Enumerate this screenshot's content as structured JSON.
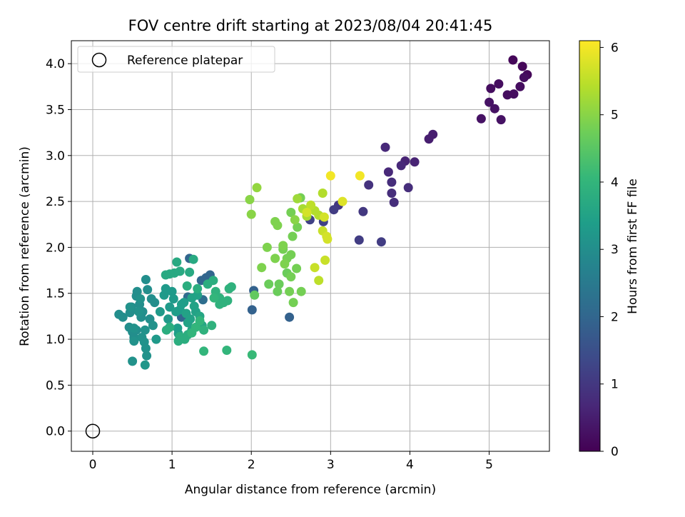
{
  "chart_data": {
    "type": "scatter",
    "title": "FOV centre drift starting at 2023/08/04 20:41:45",
    "xlabel": "Angular distance from reference (arcmin)",
    "ylabel": "Rotation from reference (arcmin)",
    "xlim": [
      -0.27,
      5.76
    ],
    "ylim": [
      -0.22,
      4.25
    ],
    "x_ticks": [
      0,
      1,
      2,
      3,
      4,
      5
    ],
    "y_ticks": [
      0.0,
      0.5,
      1.0,
      1.5,
      2.0,
      2.5,
      3.0,
      3.5,
      4.0
    ],
    "x_tick_labels": [
      "0",
      "1",
      "2",
      "3",
      "4",
      "5"
    ],
    "y_tick_labels": [
      "0.0",
      "0.5",
      "1.0",
      "1.5",
      "2.0",
      "2.5",
      "3.0",
      "3.5",
      "4.0"
    ],
    "grid": true,
    "legend": {
      "placement": "top-left",
      "entries": [
        "Reference platepar"
      ]
    },
    "colorbar": {
      "label": "Hours from first FF file",
      "colormap": "viridis",
      "range": [
        0,
        6.1
      ],
      "ticks": [
        0,
        1,
        2,
        3,
        4,
        5,
        6
      ],
      "tick_labels": [
        "0",
        "1",
        "2",
        "3",
        "4",
        "5",
        "6"
      ]
    },
    "reference": {
      "x": 0,
      "y": 0
    },
    "points": [
      [
        5.3,
        4.04,
        0.1
      ],
      [
        5.42,
        3.97,
        0.1
      ],
      [
        5.48,
        3.88,
        0.1
      ],
      [
        5.44,
        3.85,
        0.2
      ],
      [
        5.39,
        3.75,
        0.2
      ],
      [
        5.31,
        3.67,
        0.2
      ],
      [
        5.23,
        3.66,
        0.2
      ],
      [
        5.12,
        3.78,
        0.2
      ],
      [
        5.02,
        3.73,
        0.2
      ],
      [
        5.0,
        3.58,
        0.3
      ],
      [
        5.07,
        3.51,
        0.3
      ],
      [
        4.9,
        3.4,
        0.3
      ],
      [
        5.15,
        3.39,
        0.3
      ],
      [
        4.29,
        3.23,
        0.5
      ],
      [
        4.24,
        3.18,
        0.5
      ],
      [
        4.06,
        2.93,
        0.6
      ],
      [
        3.94,
        2.94,
        0.6
      ],
      [
        3.89,
        2.89,
        0.7
      ],
      [
        3.73,
        2.82,
        0.7
      ],
      [
        3.69,
        3.09,
        0.7
      ],
      [
        3.77,
        2.71,
        0.8
      ],
      [
        3.77,
        2.59,
        0.8
      ],
      [
        3.8,
        2.49,
        0.8
      ],
      [
        3.98,
        2.65,
        0.8
      ],
      [
        3.48,
        2.68,
        0.9
      ],
      [
        3.41,
        2.39,
        1.0
      ],
      [
        3.1,
        2.46,
        1.0
      ],
      [
        3.04,
        2.41,
        1.1
      ],
      [
        3.36,
        2.08,
        1.1
      ],
      [
        3.64,
        2.06,
        1.1
      ],
      [
        2.91,
        2.28,
        1.2
      ],
      [
        2.74,
        2.3,
        1.2
      ],
      [
        2.48,
        1.24,
        1.9
      ],
      [
        2.01,
        1.32,
        1.9
      ],
      [
        2.03,
        1.53,
        1.9
      ],
      [
        1.22,
        1.88,
        2.0
      ],
      [
        1.43,
        1.67,
        2.0
      ],
      [
        1.48,
        1.7,
        2.0
      ],
      [
        1.37,
        1.64,
        2.0
      ],
      [
        1.12,
        1.24,
        2.0
      ],
      [
        1.2,
        1.46,
        2.1
      ],
      [
        1.39,
        1.43,
        2.2
      ],
      [
        0.33,
        1.27,
        3.0
      ],
      [
        0.38,
        1.24,
        3.0
      ],
      [
        0.46,
        1.13,
        3.0
      ],
      [
        0.47,
        1.29,
        3.0
      ],
      [
        0.49,
        1.35,
        3.0
      ],
      [
        0.5,
        1.08,
        3.0
      ],
      [
        0.52,
        1.02,
        3.0
      ],
      [
        0.55,
        1.1,
        3.0
      ],
      [
        0.55,
        1.47,
        3.0
      ],
      [
        0.56,
        1.52,
        3.0
      ],
      [
        0.59,
        1.38,
        3.0
      ],
      [
        0.61,
        1.24,
        3.0
      ],
      [
        0.63,
        1.3,
        3.0
      ],
      [
        0.67,
        1.65,
        3.0
      ],
      [
        0.69,
        1.54,
        3.0
      ],
      [
        0.72,
        1.22,
        3.0
      ],
      [
        0.74,
        1.44,
        3.0
      ],
      [
        0.78,
        1.4,
        3.0
      ],
      [
        0.52,
        1.12,
        3.1
      ],
      [
        0.58,
        1.3,
        3.1
      ],
      [
        0.6,
        1.44,
        3.1
      ],
      [
        0.62,
        1.02,
        3.1
      ],
      [
        0.65,
        0.97,
        3.1
      ],
      [
        0.66,
        1.1,
        3.1
      ],
      [
        0.68,
        0.82,
        3.1
      ],
      [
        0.67,
        0.9,
        3.1
      ],
      [
        0.76,
        1.15,
        3.1
      ],
      [
        0.47,
        1.35,
        3.1
      ],
      [
        0.52,
        0.98,
        3.1
      ],
      [
        0.5,
        0.76,
        3.1
      ],
      [
        0.66,
        0.72,
        3.2
      ],
      [
        0.8,
        1.0,
        3.3
      ],
      [
        0.85,
        1.3,
        3.3
      ],
      [
        0.9,
        1.48,
        3.3
      ],
      [
        0.92,
        1.55,
        3.3
      ],
      [
        0.95,
        1.22,
        3.3
      ],
      [
        0.97,
        1.35,
        3.3
      ],
      [
        1.0,
        1.52,
        3.3
      ],
      [
        1.02,
        1.44,
        3.3
      ],
      [
        1.05,
        1.3,
        3.4
      ],
      [
        1.07,
        1.12,
        3.4
      ],
      [
        1.08,
        1.06,
        3.4
      ],
      [
        1.1,
        1.32,
        3.4
      ],
      [
        1.12,
        1.38,
        3.4
      ],
      [
        1.15,
        1.4,
        3.4
      ],
      [
        1.18,
        1.28,
        3.5
      ],
      [
        1.2,
        1.18,
        3.5
      ],
      [
        1.23,
        1.22,
        3.5
      ],
      [
        1.25,
        1.1,
        3.5
      ],
      [
        1.25,
        1.45,
        3.5
      ],
      [
        1.28,
        1.36,
        3.5
      ],
      [
        1.3,
        1.3,
        3.5
      ],
      [
        1.32,
        1.48,
        3.5
      ],
      [
        1.35,
        1.25,
        3.6
      ],
      [
        1.38,
        1.15,
        3.6
      ],
      [
        1.06,
        1.84,
        3.7
      ],
      [
        1.27,
        1.87,
        3.7
      ],
      [
        1.1,
        1.74,
        3.7
      ],
      [
        1.22,
        1.73,
        3.7
      ],
      [
        1.03,
        1.72,
        3.7
      ],
      [
        0.97,
        1.71,
        3.7
      ],
      [
        0.92,
        1.7,
        3.7
      ],
      [
        1.45,
        1.6,
        3.8
      ],
      [
        1.52,
        1.64,
        3.8
      ],
      [
        1.32,
        1.55,
        3.8
      ],
      [
        1.19,
        1.58,
        3.8
      ],
      [
        1.1,
        1.03,
        3.8
      ],
      [
        1.08,
        0.98,
        3.8
      ],
      [
        0.97,
        1.13,
        3.8
      ],
      [
        0.93,
        1.1,
        3.8
      ],
      [
        1.16,
        1.0,
        3.8
      ],
      [
        1.2,
        1.05,
        3.8
      ],
      [
        1.4,
        1.1,
        3.9
      ],
      [
        1.5,
        1.15,
        3.9
      ],
      [
        1.55,
        1.52,
        3.9
      ],
      [
        1.6,
        1.45,
        3.9
      ],
      [
        1.65,
        1.4,
        3.9
      ],
      [
        1.7,
        1.42,
        3.9
      ],
      [
        1.72,
        1.55,
        3.9
      ],
      [
        1.75,
        1.57,
        3.9
      ],
      [
        1.6,
        1.38,
        3.9
      ],
      [
        1.65,
        1.4,
        3.9
      ],
      [
        1.53,
        1.45,
        4.0
      ],
      [
        1.4,
        0.87,
        4.0
      ],
      [
        1.69,
        0.88,
        4.0
      ],
      [
        2.01,
        0.83,
        4.1
      ],
      [
        1.25,
        1.07,
        4.0
      ],
      [
        1.3,
        1.13,
        4.0
      ],
      [
        1.35,
        1.2,
        4.0
      ],
      [
        2.04,
        1.48,
        4.6
      ],
      [
        2.22,
        1.6,
        4.7
      ],
      [
        2.33,
        1.52,
        4.7
      ],
      [
        2.35,
        1.6,
        4.7
      ],
      [
        2.45,
        1.72,
        4.7
      ],
      [
        2.48,
        1.52,
        4.8
      ],
      [
        2.5,
        1.68,
        4.8
      ],
      [
        2.53,
        1.4,
        4.8
      ],
      [
        2.57,
        1.77,
        4.8
      ],
      [
        2.63,
        1.52,
        4.8
      ],
      [
        2.4,
        1.98,
        4.8
      ],
      [
        2.45,
        1.88,
        4.8
      ],
      [
        2.5,
        1.92,
        4.8
      ],
      [
        2.52,
        2.12,
        4.8
      ],
      [
        2.58,
        2.22,
        4.8
      ],
      [
        2.4,
        2.02,
        4.9
      ],
      [
        2.5,
        2.38,
        4.8
      ],
      [
        2.62,
        2.54,
        4.8
      ],
      [
        2.3,
        2.28,
        4.9
      ],
      [
        2.33,
        2.24,
        4.9
      ],
      [
        2.2,
        2.0,
        4.9
      ],
      [
        2.13,
        1.78,
        4.9
      ],
      [
        2.3,
        1.88,
        4.9
      ],
      [
        2.42,
        1.82,
        4.9
      ],
      [
        2.55,
        2.3,
        5.0
      ],
      [
        1.98,
        2.52,
        5.0
      ],
      [
        2.0,
        2.36,
        5.0
      ],
      [
        2.07,
        2.65,
        5.1
      ],
      [
        2.58,
        2.53,
        5.2
      ],
      [
        2.65,
        2.42,
        5.3
      ],
      [
        2.7,
        2.34,
        5.3
      ],
      [
        2.8,
        2.4,
        5.4
      ],
      [
        2.85,
        2.35,
        5.4
      ],
      [
        2.9,
        2.59,
        5.4
      ],
      [
        2.75,
        2.46,
        5.5
      ],
      [
        2.85,
        1.64,
        5.5
      ],
      [
        2.8,
        1.78,
        5.6
      ],
      [
        2.93,
        1.86,
        5.6
      ],
      [
        2.9,
        2.18,
        5.6
      ],
      [
        2.95,
        2.12,
        5.7
      ],
      [
        2.92,
        2.33,
        5.7
      ],
      [
        2.96,
        2.09,
        5.7
      ],
      [
        2.7,
        2.38,
        5.7
      ],
      [
        3.15,
        2.5,
        5.8
      ],
      [
        3.0,
        2.78,
        6.0
      ],
      [
        3.37,
        2.78,
        6.0
      ]
    ]
  }
}
